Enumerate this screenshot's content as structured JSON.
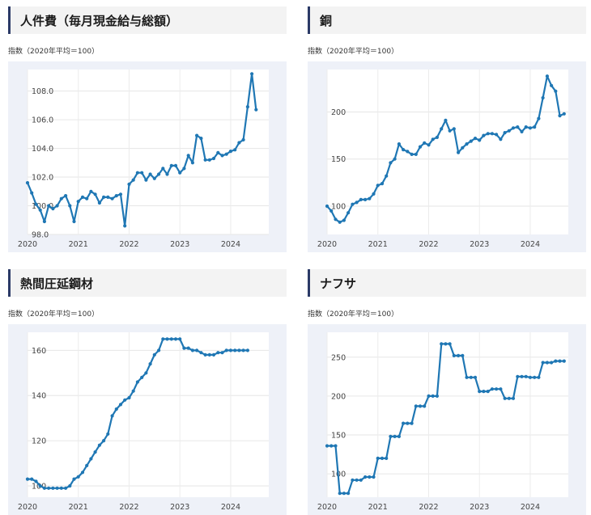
{
  "panels": [
    {
      "title": "人件費（毎月現金給与総額）",
      "unit": "指数（2020年平均＝100）"
    },
    {
      "title": "銅",
      "unit": "指数（2020年平均＝100）"
    },
    {
      "title": "熱間圧延鋼材",
      "unit": "指数（2020年平均＝100）"
    },
    {
      "title": "ナフサ",
      "unit": "指数（2020年平均＝100）"
    }
  ],
  "colors": {
    "line": "#1f77b4",
    "header_accent": "#2b3a67",
    "plot_bg": "#eef1f8"
  },
  "chart_data": [
    {
      "type": "line",
      "title": "人件費（毎月現金給与総額）",
      "ylabel": "指数（2020年平均＝100）",
      "xlim": [
        2020.0,
        2024.75
      ],
      "ylim": [
        98.0,
        109.5
      ],
      "x_ticks": [
        "2020",
        "2021",
        "2022",
        "2023",
        "2024"
      ],
      "x_tick_values": [
        2020,
        2021,
        2022,
        2023,
        2024
      ],
      "y_ticks": [
        "98.0",
        "100.0",
        "102.0",
        "104.0",
        "106.0",
        "108.0"
      ],
      "y_tick_values": [
        98,
        100,
        102,
        104,
        106,
        108
      ],
      "grid": true,
      "series": [
        {
          "start": "2020-01",
          "values": [
            101.6,
            100.9,
            100.1,
            99.7,
            98.9,
            100.0,
            99.8,
            100.0,
            100.5,
            100.7,
            100.0,
            98.9,
            100.3,
            100.6,
            100.5,
            101.0,
            100.8,
            100.2,
            100.6,
            100.6,
            100.5,
            100.7,
            100.8,
            98.6,
            101.5,
            101.8,
            102.3,
            102.3,
            101.8,
            102.2,
            101.9,
            102.2,
            102.6,
            102.2,
            102.8,
            102.8,
            102.3,
            102.6,
            103.5,
            103.0,
            104.9,
            104.7,
            103.2,
            103.2,
            103.3,
            103.7,
            103.5,
            103.6,
            103.8,
            103.9,
            104.4,
            104.6,
            106.9,
            109.2,
            106.7
          ]
        }
      ]
    },
    {
      "type": "line",
      "title": "銅",
      "ylabel": "指数（2020年平均＝100）",
      "xlim": [
        2020.0,
        2024.75
      ],
      "ylim": [
        70,
        245
      ],
      "x_ticks": [
        "2020",
        "2021",
        "2022",
        "2023",
        "2024"
      ],
      "x_tick_values": [
        2020,
        2021,
        2022,
        2023,
        2024
      ],
      "y_ticks": [
        "100",
        "150",
        "200"
      ],
      "y_tick_values": [
        100,
        150,
        200
      ],
      "grid": true,
      "series": [
        {
          "start": "2020-01",
          "values": [
            100,
            95,
            86,
            83,
            85,
            93,
            102,
            104,
            107,
            107,
            108,
            113,
            122,
            124,
            132,
            146,
            150,
            166,
            160,
            158,
            155,
            155,
            163,
            167,
            165,
            171,
            173,
            182,
            191,
            180,
            182,
            157,
            162,
            166,
            169,
            172,
            170,
            175,
            177,
            177,
            176,
            171,
            178,
            180,
            183,
            184,
            179,
            184,
            183,
            184,
            193,
            215,
            238,
            228,
            222,
            196,
            198
          ]
        }
      ]
    },
    {
      "type": "line",
      "title": "熱間圧延鋼材",
      "ylabel": "指数（2020年平均＝100）",
      "xlim": [
        2020.0,
        2024.75
      ],
      "ylim": [
        95,
        168
      ],
      "x_ticks": [
        "2020",
        "2021",
        "2022",
        "2023",
        "2024"
      ],
      "x_tick_values": [
        2020,
        2021,
        2022,
        2023,
        2024
      ],
      "y_ticks": [
        "100",
        "120",
        "140",
        "160"
      ],
      "y_tick_values": [
        100,
        120,
        140,
        160
      ],
      "grid": true,
      "series": [
        {
          "start": "2020-01",
          "values": [
            103,
            103,
            102,
            100,
            99,
            99,
            99,
            99,
            99,
            99,
            100,
            103,
            104,
            106,
            109,
            112,
            115,
            118,
            120,
            123,
            131,
            134,
            136,
            138,
            139,
            142,
            146,
            148,
            150,
            154,
            158,
            160,
            165,
            165,
            165,
            165,
            165,
            161,
            161,
            160,
            160,
            159,
            158,
            158,
            158,
            159,
            159,
            160,
            160,
            160,
            160,
            160,
            160
          ]
        }
      ]
    },
    {
      "type": "line",
      "title": "ナフサ",
      "ylabel": "指数（2020年平均＝100）",
      "xlim": [
        2020.0,
        2024.75
      ],
      "ylim": [
        70,
        282
      ],
      "x_ticks": [
        "2020",
        "2021",
        "2022",
        "2023",
        "2024"
      ],
      "x_tick_values": [
        2020,
        2021,
        2022,
        2023,
        2024
      ],
      "y_ticks": [
        "100",
        "150",
        "200",
        "250"
      ],
      "y_tick_values": [
        100,
        150,
        200,
        250
      ],
      "grid": true,
      "series": [
        {
          "start": "2020-01",
          "values": [
            136,
            136,
            136,
            75,
            75,
            75,
            92,
            92,
            92,
            96,
            96,
            96,
            120,
            120,
            120,
            148,
            148,
            148,
            165,
            165,
            165,
            187,
            187,
            187,
            200,
            200,
            200,
            267,
            267,
            267,
            252,
            252,
            252,
            224,
            224,
            224,
            206,
            206,
            206,
            209,
            209,
            209,
            197,
            197,
            197,
            225,
            225,
            225,
            224,
            224,
            224,
            243,
            243,
            243,
            245,
            245,
            245
          ]
        }
      ]
    }
  ]
}
